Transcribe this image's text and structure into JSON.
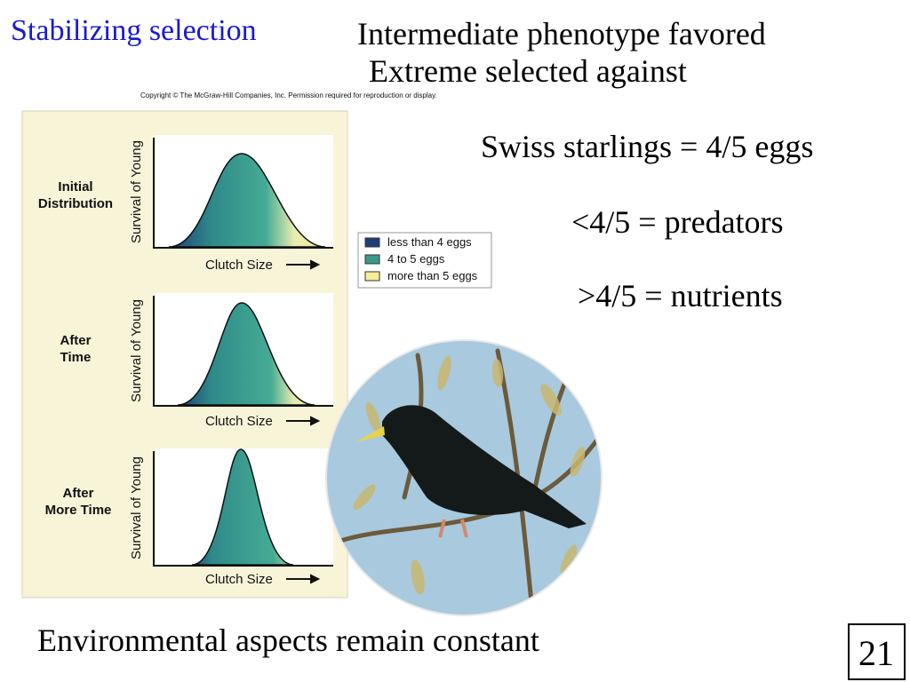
{
  "title": "Stabilizing selection",
  "subtitle_lines": [
    "Intermediate phenotype favored",
    "Extreme selected against"
  ],
  "copyright": "Copyright © The McGraw-Hill Companies, Inc. Permission required for reproduction or display.",
  "figure": {
    "panels": [
      {
        "label_lines": [
          "Initial",
          "Distribution"
        ],
        "y_label": "Survival of Young",
        "x_label": "Clutch Size"
      },
      {
        "label_lines": [
          "After",
          "Time"
        ],
        "y_label": "Survival of Young",
        "x_label": "Clutch Size"
      },
      {
        "label_lines": [
          "After",
          "More Time"
        ],
        "y_label": "Survival of Young",
        "x_label": "Clutch Size"
      }
    ],
    "legend": [
      "less than 4 eggs",
      "4 to 5 eggs",
      "more than 5 eggs"
    ]
  },
  "notes": [
    "Swiss starlings = 4/5 eggs",
    "<4/5 = predators",
    ">4/5 = nutrients"
  ],
  "footer": "Environmental aspects remain constant",
  "page_number": "21"
}
